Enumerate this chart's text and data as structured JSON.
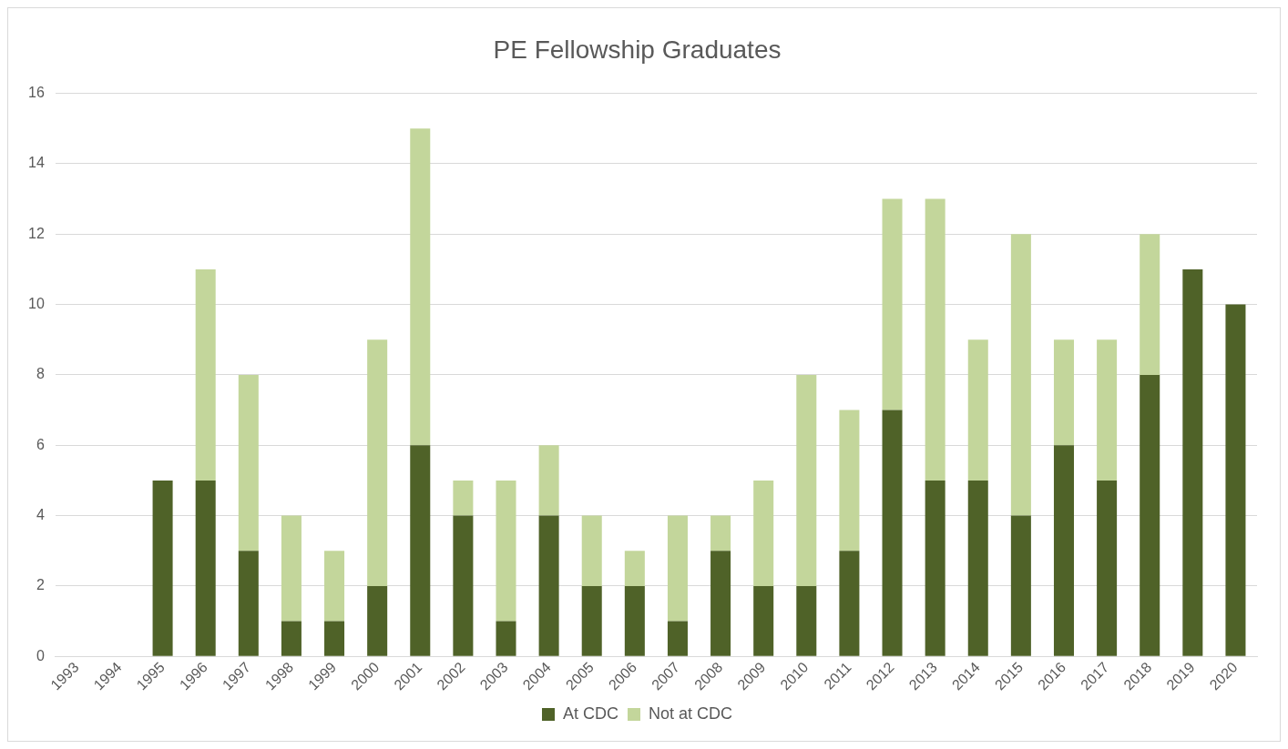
{
  "chart_data": {
    "type": "bar",
    "title": "PE Fellowship Graduates",
    "stacked": true,
    "categories": [
      "1993",
      "1994",
      "1995",
      "1996",
      "1997",
      "1998",
      "1999",
      "2000",
      "2001",
      "2002",
      "2003",
      "2004",
      "2005",
      "2006",
      "2007",
      "2008",
      "2009",
      "2010",
      "2011",
      "2012",
      "2013",
      "2014",
      "2015",
      "2016",
      "2017",
      "2018",
      "2019",
      "2020"
    ],
    "series": [
      {
        "name": "At CDC",
        "color": "#4f6228",
        "values": [
          0,
          0,
          5,
          5,
          3,
          1,
          1,
          2,
          6,
          4,
          1,
          4,
          2,
          2,
          1,
          3,
          2,
          2,
          3,
          7,
          5,
          5,
          4,
          6,
          5,
          8,
          11,
          10
        ]
      },
      {
        "name": "Not at CDC",
        "color": "#c3d69b",
        "values": [
          0,
          0,
          0,
          6,
          5,
          3,
          2,
          7,
          9,
          1,
          4,
          2,
          2,
          1,
          3,
          1,
          3,
          6,
          4,
          6,
          8,
          4,
          8,
          3,
          4,
          4,
          0,
          0
        ]
      }
    ],
    "ylim": [
      0,
      16
    ],
    "yticks": [
      0,
      2,
      4,
      6,
      8,
      10,
      12,
      14,
      16
    ],
    "grid": "y",
    "legend": "bottom"
  }
}
